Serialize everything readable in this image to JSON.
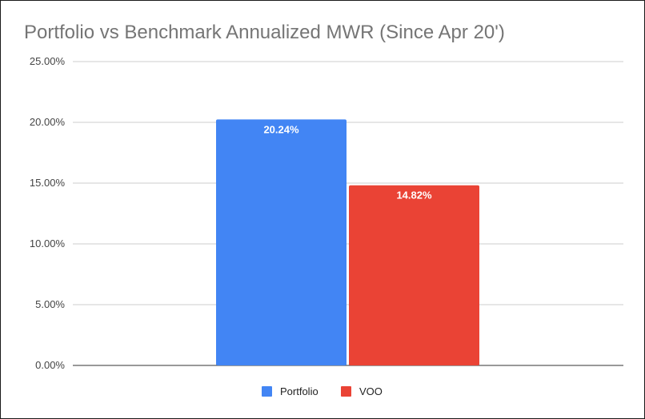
{
  "chart_data": {
    "type": "bar",
    "title": "Portfolio vs Benchmark Annualized MWR (Since Apr 20')",
    "xlabel": "",
    "ylabel": "",
    "ylim": [
      0,
      25
    ],
    "y_ticks": [
      "0.00%",
      "5.00%",
      "10.00%",
      "15.00%",
      "20.00%",
      "25.00%"
    ],
    "y_tick_values": [
      0,
      5,
      10,
      15,
      20,
      25
    ],
    "grid": true,
    "legend_position": "bottom",
    "series": [
      {
        "name": "Portfolio",
        "value": 20.24,
        "label": "20.24%",
        "color": "#4285f4"
      },
      {
        "name": "VOO",
        "value": 14.82,
        "label": "14.82%",
        "color": "#ea4335"
      }
    ]
  }
}
